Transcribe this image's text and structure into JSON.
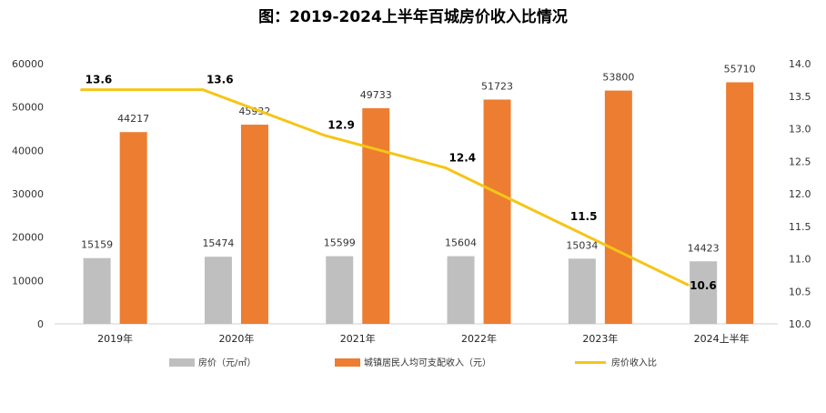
{
  "chart_data": {
    "type": "bar+line",
    "title": "图：2019-2024上半年百城房价收入比情况",
    "categories": [
      "2019年",
      "2020年",
      "2021年",
      "2022年",
      "2023年",
      "2024上半年"
    ],
    "series": [
      {
        "name": "房价（元/㎡）",
        "type": "bar",
        "axis": "left",
        "color": "#bfbfbf",
        "values": [
          15159,
          15474,
          15599,
          15604,
          15034,
          14423
        ]
      },
      {
        "name": "城镇居民人均可支配收入（元）",
        "type": "bar",
        "axis": "left",
        "color": "#ed7d31",
        "values": [
          44217,
          45932,
          49733,
          51723,
          53800,
          55710
        ]
      },
      {
        "name": "房价收入比",
        "type": "line",
        "axis": "right",
        "color": "#f5c518",
        "values": [
          13.6,
          13.6,
          12.9,
          12.4,
          11.5,
          10.6
        ]
      }
    ],
    "y_left": {
      "min": 0,
      "max": 60000,
      "ticks": [
        "0",
        "10000",
        "20000",
        "30000",
        "40000",
        "50000",
        "60000"
      ]
    },
    "y_right": {
      "min": 10.0,
      "max": 14.0,
      "ticks": [
        "10.0",
        "10.5",
        "11.0",
        "11.5",
        "12.0",
        "12.5",
        "13.0",
        "13.5",
        "14.0"
      ]
    },
    "legend_position": "bottom"
  }
}
